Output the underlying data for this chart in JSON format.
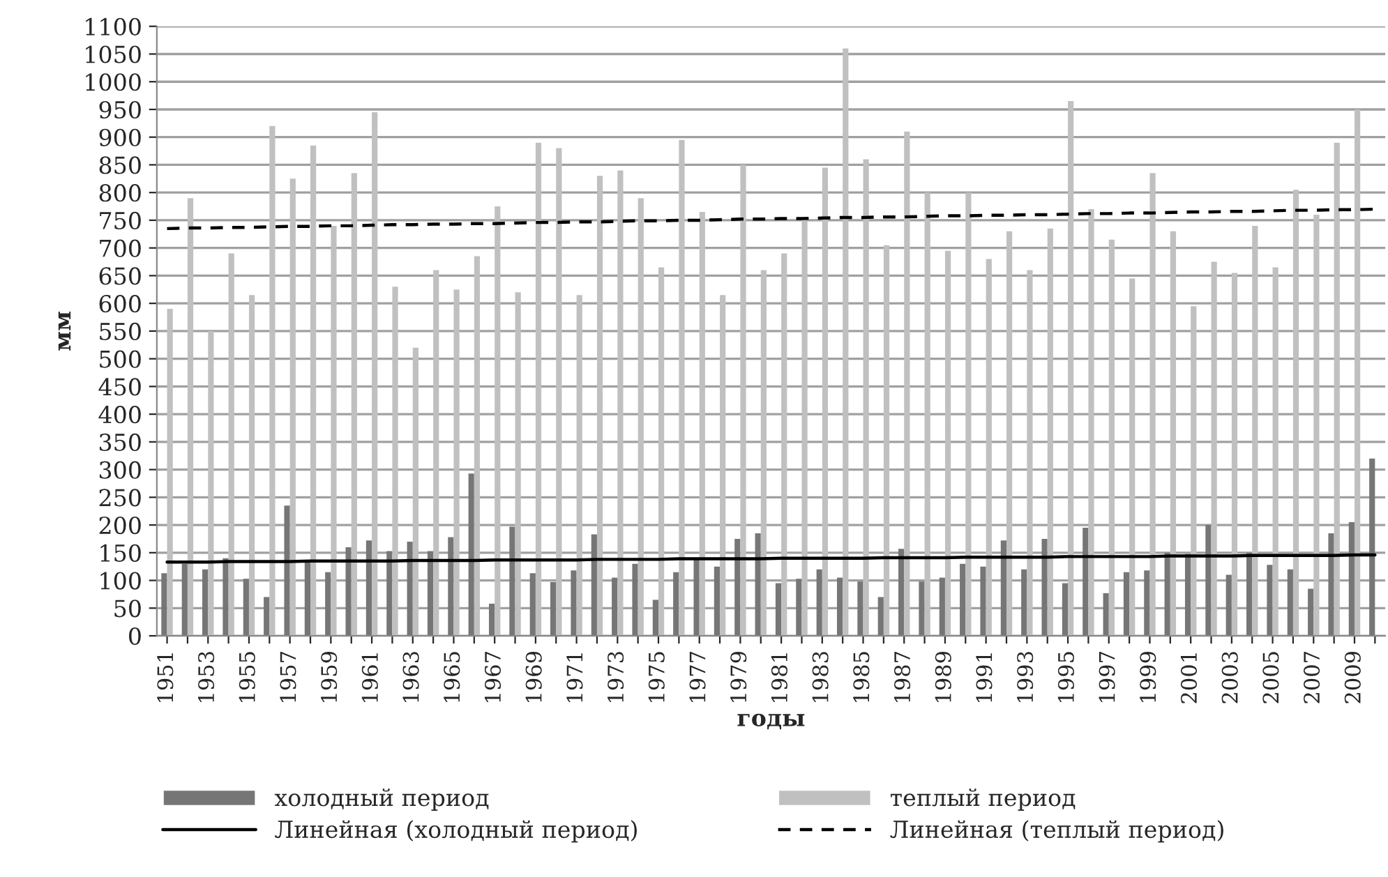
{
  "chart_data": {
    "type": "bar",
    "xlabel": "годы",
    "ylabel": "мм",
    "categories": [
      "1951",
      null,
      "1953",
      null,
      "1955",
      null,
      "1957",
      null,
      "1959",
      null,
      "1961",
      null,
      "1963",
      null,
      "1965",
      null,
      "1967",
      null,
      "1969",
      null,
      "1971",
      null,
      "1973",
      null,
      "1975",
      null,
      "1977",
      null,
      "1979",
      null,
      "1981",
      null,
      "1983",
      null,
      "1985",
      null,
      "1987",
      null,
      "1989",
      null,
      "1991",
      null,
      "1993",
      null,
      "1995",
      null,
      "1997",
      null,
      "1999",
      null,
      "2001",
      null,
      "2003",
      null,
      "2005",
      null,
      "2007",
      null,
      "2009",
      null
    ],
    "series": [
      {
        "name": "холодный период",
        "color": "#767676",
        "values": [
          113,
          130,
          120,
          140,
          103,
          70,
          235,
          135,
          115,
          160,
          172,
          153,
          170,
          153,
          178,
          293,
          58,
          197,
          113,
          97,
          118,
          183,
          105,
          130,
          65,
          115,
          140,
          125,
          175,
          185,
          95,
          103,
          120,
          105,
          98,
          70,
          157,
          98,
          105,
          130,
          125,
          172,
          120,
          175,
          95,
          195,
          77,
          115,
          118,
          150,
          148,
          200,
          110,
          150,
          128,
          120,
          85,
          185,
          205,
          320
        ]
      },
      {
        "name": "теплый период",
        "color": "#c0c0c0",
        "values": [
          590,
          790,
          550,
          690,
          615,
          920,
          825,
          885,
          740,
          835,
          945,
          630,
          520,
          660,
          625,
          685,
          775,
          620,
          890,
          880,
          615,
          830,
          840,
          790,
          665,
          895,
          765,
          615,
          850,
          660,
          690,
          755,
          845,
          1060,
          860,
          705,
          910,
          800,
          695,
          800,
          680,
          730,
          660,
          735,
          965,
          770,
          715,
          645,
          835,
          730,
          595,
          675,
          655,
          740,
          665,
          805,
          760,
          890,
          950,
          null
        ]
      },
      {
        "name": "Линейная (холодный период)",
        "type": "line",
        "color": "#000000",
        "line_style": "solid",
        "values": [
          133,
          133,
          133,
          134,
          134,
          134,
          134,
          135,
          135,
          135,
          135,
          135,
          136,
          136,
          136,
          136,
          137,
          137,
          137,
          137,
          137,
          138,
          138,
          138,
          138,
          139,
          139,
          139,
          139,
          139,
          140,
          140,
          140,
          140,
          140,
          141,
          141,
          141,
          141,
          142,
          142,
          142,
          142,
          142,
          143,
          143,
          143,
          143,
          143,
          144,
          144,
          144,
          144,
          145,
          145,
          145,
          145,
          145,
          146,
          146
        ]
      },
      {
        "name": "Линейная (теплый период)",
        "type": "line",
        "color": "#000000",
        "line_style": "dashed",
        "values": [
          735,
          736,
          736,
          737,
          737,
          738,
          739,
          739,
          740,
          740,
          741,
          742,
          742,
          743,
          743,
          744,
          744,
          745,
          746,
          746,
          747,
          747,
          748,
          749,
          749,
          750,
          750,
          751,
          752,
          752,
          753,
          753,
          754,
          755,
          755,
          756,
          756,
          757,
          758,
          758,
          759,
          759,
          760,
          760,
          761,
          762,
          762,
          763,
          763,
          764,
          765,
          765,
          766,
          766,
          767,
          768,
          768,
          769,
          769,
          770
        ]
      }
    ],
    "ylim": [
      0,
      1100
    ],
    "yticks": [
      0,
      50,
      100,
      150,
      200,
      250,
      300,
      350,
      400,
      450,
      500,
      550,
      600,
      650,
      700,
      750,
      800,
      850,
      900,
      950,
      1000,
      1050,
      1100
    ],
    "grid": "y",
    "legend": "bottom"
  }
}
